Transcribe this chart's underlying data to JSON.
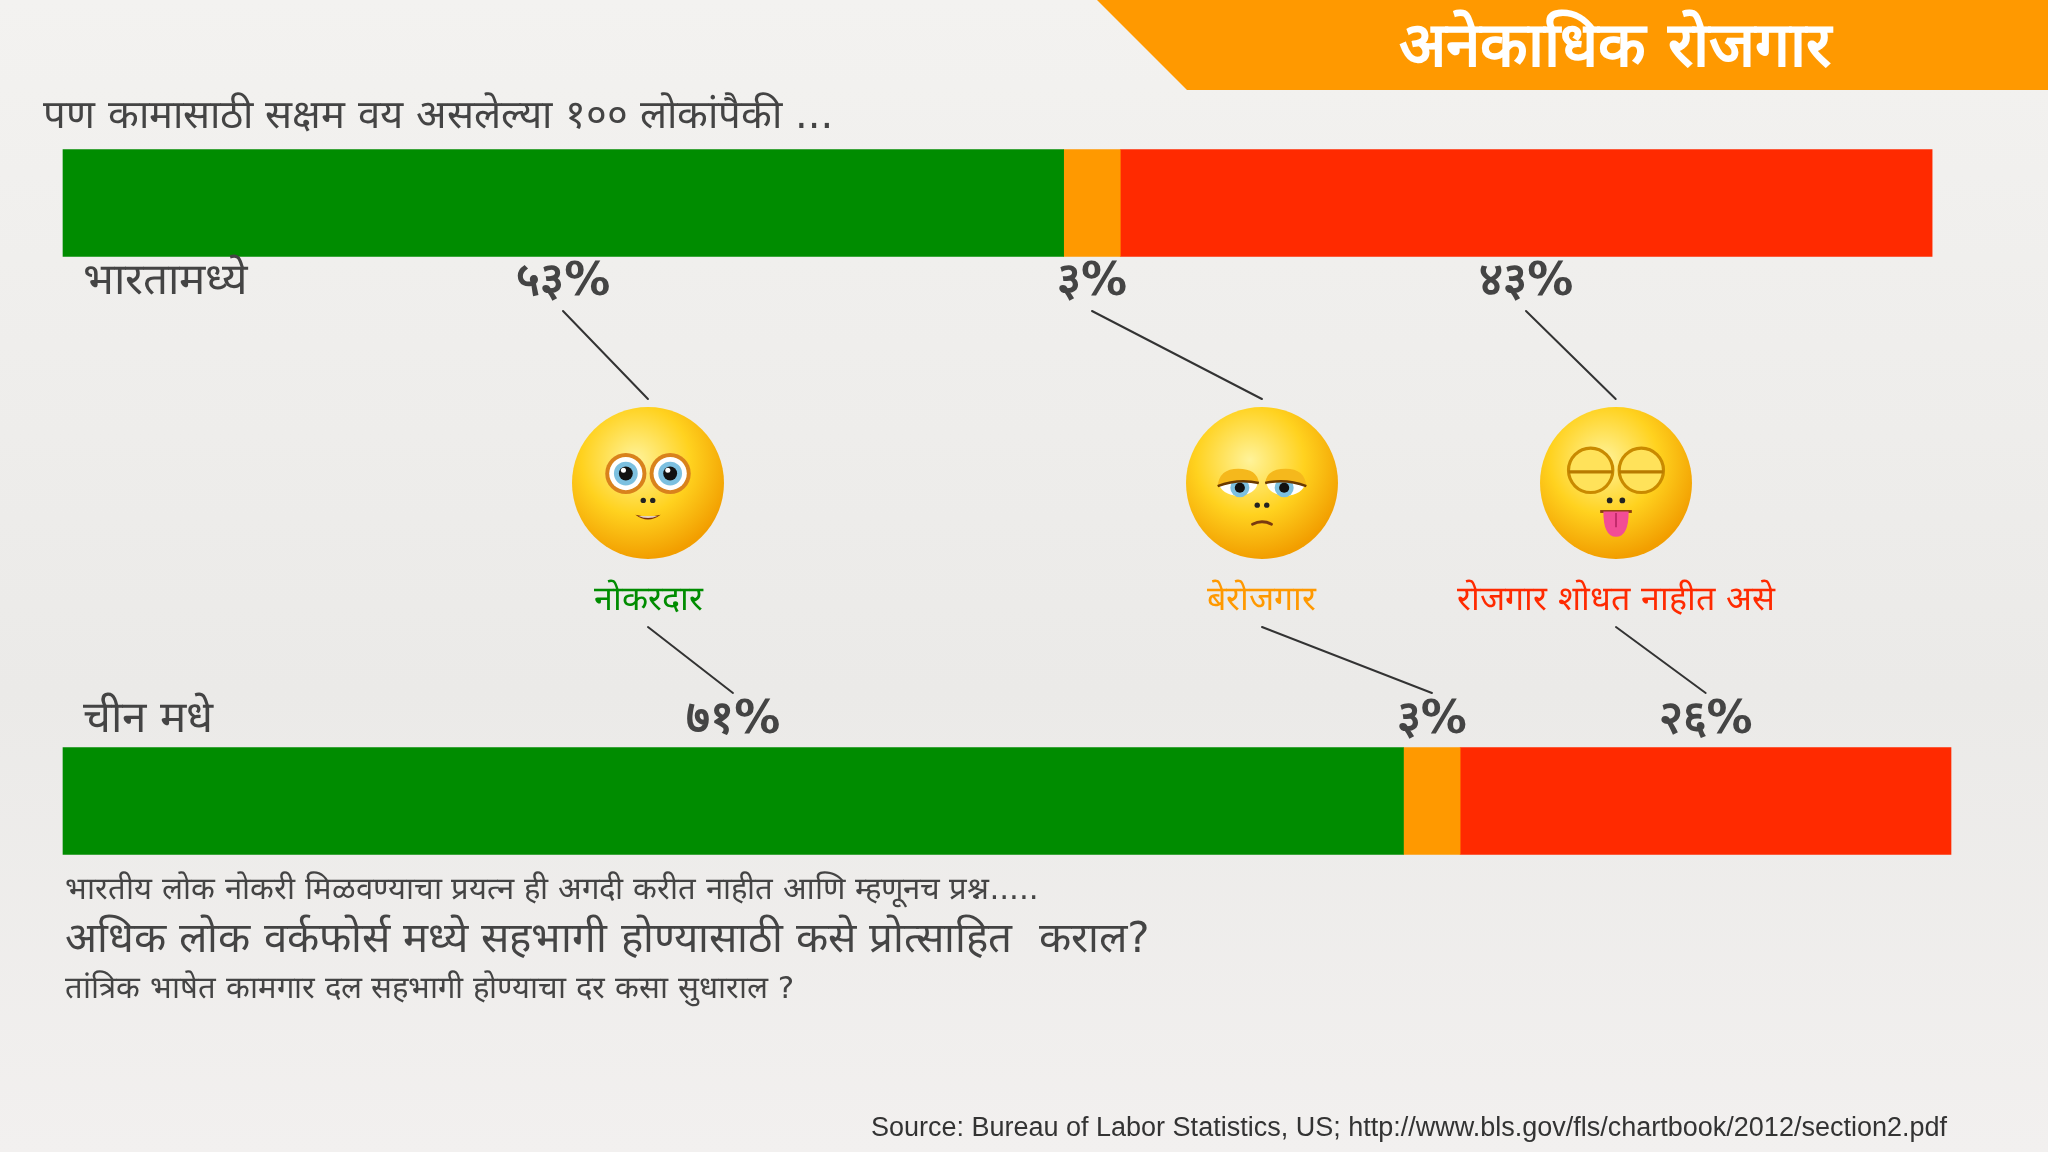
{
  "chart_data": {
    "type": "bar",
    "orientation": "horizontal",
    "stacked": true,
    "title": "अनेकाधिक रोजगार",
    "subtitle": "पण कामासाठी सक्षम वय असलेल्या १०० लोकांपैकी ...",
    "categories": [
      "भारतामध्ये",
      "चीन मधे"
    ],
    "series": [
      {
        "name": "नोकरदार",
        "color": "#008c00",
        "values": [
          53,
          71
        ],
        "value_labels": [
          "५३%",
          "७१%"
        ]
      },
      {
        "name": "बेरोजगार",
        "color": "#ff9900",
        "values": [
          3,
          3
        ],
        "value_labels": [
          "३%",
          "३%"
        ]
      },
      {
        "name": "रोजगार शोधत नाहीत असे",
        "color": "#ff2a00",
        "values": [
          43,
          26
        ],
        "value_labels": [
          "४३%",
          "२६%"
        ]
      }
    ],
    "tick_labels": "y",
    "annotations": [
      "भारतीय लोक नोकरी मिळवण्याचा प्रयत्न ही अगदी करीत नाहीत आणि म्हणूनच प्रश्न.....",
      "अधिक लोक वर्कफोर्स मध्ये सहभागी होण्यासाठी कसे प्रोत्साहित  कराल?",
      "तांत्रिक भाषेत कामगार दल सहभागी होण्याचा दर कसा सुधाराल ?",
      "Source: Bureau of Labor Statistics, US; http://www.bls.gov/fls/chartbook/2012/section2.pdf"
    ]
  }
}
